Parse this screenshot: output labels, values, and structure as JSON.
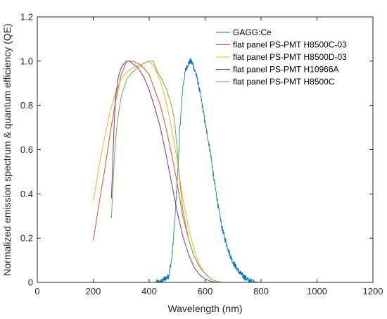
{
  "chart_data": {
    "type": "line",
    "xlabel": "Wavelength (nm)",
    "ylabel": "Normalized emission spectrum & quantum efficiency (QE)",
    "xlim": [
      0,
      1200
    ],
    "ylim": [
      0,
      1.2
    ],
    "xticks": [
      0,
      200,
      400,
      600,
      800,
      1000,
      1200
    ],
    "xtick_labels": [
      "0",
      "200",
      "400",
      "600",
      "800",
      "1000",
      "1200"
    ],
    "yticks": [
      0,
      0.2,
      0.4,
      0.6,
      0.8,
      1.0,
      1.2
    ],
    "ytick_labels": [
      "0",
      "0.2",
      "0.4",
      "0.6",
      "0.8",
      "1.0",
      "1.2"
    ],
    "grid": false,
    "legend_position": "top-right",
    "series": [
      {
        "name": "GAGG:Ce",
        "color": "#0072BD",
        "noisy": true,
        "x": [
          200,
          440,
          450,
          460,
          470,
          480,
          490,
          500,
          510,
          520,
          530,
          540,
          548,
          555,
          560,
          570,
          580,
          590,
          600,
          610,
          620,
          630,
          640,
          650,
          660,
          670,
          680,
          690,
          700,
          710,
          720,
          730,
          740,
          750,
          760,
          800,
          1000
        ],
        "y": [
          0,
          0,
          0.01,
          0.02,
          0.03,
          0.1,
          0.25,
          0.45,
          0.7,
          0.88,
          0.96,
          0.99,
          1.0,
          0.99,
          0.97,
          0.93,
          0.87,
          0.8,
          0.72,
          0.65,
          0.58,
          0.48,
          0.4,
          0.32,
          0.25,
          0.2,
          0.16,
          0.12,
          0.09,
          0.07,
          0.05,
          0.035,
          0.025,
          0.015,
          0.005,
          0,
          0
        ]
      },
      {
        "name": "flat panel PS-PMT H8500C-03",
        "color": "#D95319",
        "x": [
          200,
          210,
          220,
          240,
          260,
          280,
          300,
          320,
          340,
          360,
          380,
          400,
          420,
          440,
          460,
          480,
          500,
          520,
          540,
          560,
          580,
          600,
          620,
          640,
          660
        ],
        "y": [
          0.19,
          0.27,
          0.35,
          0.5,
          0.67,
          0.82,
          0.94,
          1.0,
          1.0,
          0.99,
          0.97,
          0.94,
          0.87,
          0.8,
          0.7,
          0.58,
          0.45,
          0.3,
          0.2,
          0.12,
          0.07,
          0.04,
          0.015,
          0.005,
          0
        ]
      },
      {
        "name": "flat panel PS-PMT H8500D-03",
        "color": "#EDB120",
        "x": [
          200,
          210,
          220,
          240,
          260,
          280,
          300,
          320,
          340,
          360,
          380,
          400,
          420,
          440,
          460,
          480,
          500,
          520,
          540,
          560,
          580,
          600,
          620,
          640,
          660
        ],
        "y": [
          0.37,
          0.44,
          0.52,
          0.65,
          0.77,
          0.86,
          0.92,
          0.95,
          0.97,
          0.98,
          0.99,
          1.0,
          0.97,
          0.91,
          0.82,
          0.7,
          0.55,
          0.38,
          0.25,
          0.15,
          0.08,
          0.04,
          0.015,
          0.005,
          0
        ]
      },
      {
        "name": "flat panel PS-PMT H10966A",
        "color": "#7E2F8E",
        "x": [
          265,
          270,
          275,
          280,
          290,
          300,
          310,
          320,
          330,
          340,
          360,
          380,
          400,
          420,
          440,
          460,
          480,
          500,
          520,
          540,
          560,
          580,
          600,
          620,
          640
        ],
        "y": [
          0.38,
          0.55,
          0.72,
          0.84,
          0.93,
          0.97,
          0.99,
          1.0,
          1.0,
          0.99,
          0.97,
          0.93,
          0.87,
          0.79,
          0.7,
          0.58,
          0.45,
          0.32,
          0.21,
          0.13,
          0.07,
          0.035,
          0.015,
          0.005,
          0
        ]
      },
      {
        "name": "flat panel PS-PMT H8500C",
        "color": "#77AC30",
        "x": [
          265,
          270,
          275,
          280,
          290,
          300,
          320,
          340,
          360,
          380,
          400,
          410,
          415,
          420,
          430,
          440,
          460,
          480,
          490,
          500,
          510,
          520,
          540,
          560,
          580,
          600,
          620,
          640,
          660
        ],
        "y": [
          0.29,
          0.42,
          0.55,
          0.65,
          0.76,
          0.84,
          0.92,
          0.95,
          0.97,
          0.99,
          1.0,
          1.0,
          1.0,
          0.98,
          0.95,
          0.93,
          0.88,
          0.8,
          0.74,
          0.6,
          0.45,
          0.33,
          0.2,
          0.12,
          0.07,
          0.04,
          0.015,
          0.005,
          0
        ]
      }
    ]
  }
}
